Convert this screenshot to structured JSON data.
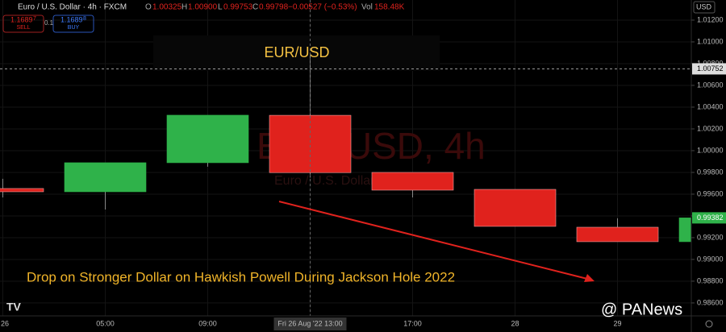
{
  "chart_data": {
    "type": "candlestick",
    "title": "EUR/USD",
    "annotation": "Drop on Stronger Dollar on Hawkish Powell During Jackson Hole 2022",
    "symbol": "Euro / U.S. Dollar · 4h · FXCM",
    "header": {
      "o": "O",
      "open": "1.00325",
      "h": "H",
      "high": "1.00900",
      "l": "L",
      "low": "0.99753",
      "c": "C",
      "close": "0.99798",
      "change": "−0.00527 (−0.53%)",
      "vol": "Vol",
      "volume": "158.48K"
    },
    "sell": {
      "price": "1.1689",
      "pip": "7",
      "label": "SELL"
    },
    "spread": "0.1",
    "buy": {
      "price": "1.1689",
      "pip": "8",
      "label": "BUY"
    },
    "currency": "USD",
    "watermark": {
      "big": "EUR/USD, 4h",
      "small": "Euro / U.S. Dollar"
    },
    "source": "@ PANews",
    "categories": [
      "26",
      "05:00",
      "09:00",
      "Fri 26 Aug '22  13:00",
      "17:00",
      "28",
      "29",
      null
    ],
    "series": {
      "open": [
        0.99652,
        0.99622,
        0.99889,
        1.00325,
        0.998,
        0.99644,
        0.99296,
        0.99163
      ],
      "high": [
        0.99741,
        0.99889,
        1.00326,
        1.009,
        0.998,
        0.99644,
        0.99378,
        0.99378
      ],
      "low": [
        0.9957,
        0.99459,
        0.99852,
        0.99753,
        0.9957,
        0.99304,
        0.99163,
        0.99163
      ],
      "close": [
        0.99622,
        0.99889,
        1.00326,
        0.99798,
        0.99637,
        0.99304,
        0.99163,
        0.99382
      ]
    },
    "up_color": "#2fb24a",
    "down_color": "#e0221d",
    "ylim": [
      0.98481,
      1.01385
    ],
    "yticks": [
      {
        "value": 0.986,
        "label": "0.98600"
      },
      {
        "value": 0.988,
        "label": "0.98800"
      },
      {
        "value": 0.99,
        "label": "0.99000"
      },
      {
        "value": 0.992,
        "label": "0.99200"
      },
      {
        "value": 0.994,
        "label": "0.99400"
      },
      {
        "value": 0.996,
        "label": "0.99600"
      },
      {
        "value": 0.998,
        "label": "0.99800"
      },
      {
        "value": 1.0,
        "label": "1.00000"
      },
      {
        "value": 1.002,
        "label": "1.00200"
      },
      {
        "value": 1.004,
        "label": "1.00400"
      },
      {
        "value": 1.006,
        "label": "1.00600"
      },
      {
        "value": 1.008,
        "label": "1.00800"
      },
      {
        "value": 1.01,
        "label": "1.01000"
      },
      {
        "value": 1.012,
        "label": "1.01200"
      }
    ],
    "crosshair_price": {
      "value": 1.00752,
      "label": "1.00752"
    },
    "last_price": {
      "value": 0.99382,
      "label": "0.99382"
    },
    "grid": true
  }
}
